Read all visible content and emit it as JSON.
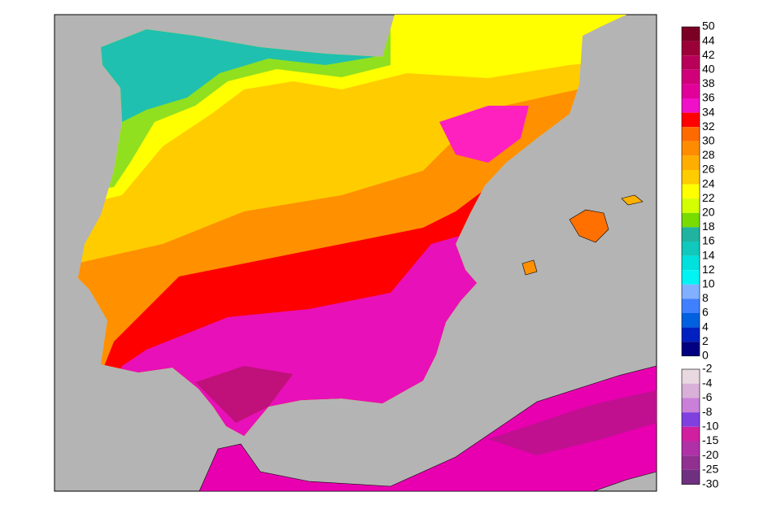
{
  "legend": {
    "warm_scale": {
      "labels": [
        50,
        44,
        42,
        40,
        38,
        36,
        34,
        32,
        30,
        28,
        26,
        24,
        22,
        20,
        18,
        16,
        14,
        12,
        10,
        8,
        6,
        4,
        2,
        0
      ],
      "colors": [
        "#7a0024",
        "#9c0038",
        "#b8005a",
        "#d0007a",
        "#e2009a",
        "#f010c8",
        "#ff0000",
        "#ff6a00",
        "#ff8c00",
        "#ffae00",
        "#ffcc00",
        "#ffff00",
        "#d4ff00",
        "#78dc00",
        "#20b4a0",
        "#10c8bc",
        "#00e0dc",
        "#00f4f4",
        "#80b0ff",
        "#4080ff",
        "#0060e0",
        "#0020c0",
        "#000080"
      ]
    },
    "cold_scale": {
      "labels": [
        -2,
        -4,
        -6,
        -8,
        -10,
        -15,
        -20,
        -25,
        -30
      ],
      "colors": [
        "#e8d8e0",
        "#d8b0d8",
        "#c880d8",
        "#8040e0",
        "#d020a0",
        "#b030a8",
        "#903090",
        "#703080"
      ]
    }
  }
}
